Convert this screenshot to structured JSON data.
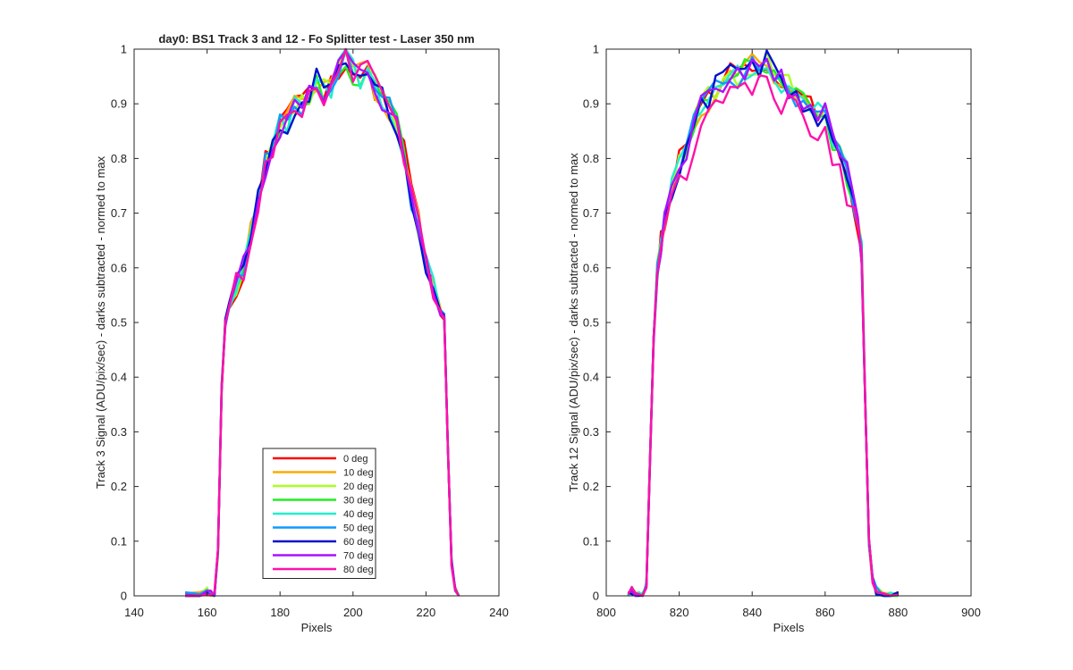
{
  "chart_data": [
    {
      "type": "line",
      "title": "day0: BS1  Track 3 and 12 - Fo Splitter test - Laser 350 nm",
      "xlabel": "Pixels",
      "ylabel": "Track 3 Signal (ADU/pix/sec) - darks subtracted - normed to max",
      "xlim": [
        140,
        240
      ],
      "ylim": [
        0,
        1
      ],
      "xticks": [
        "140",
        "160",
        "180",
        "200",
        "220",
        "240"
      ],
      "yticks": [
        "0",
        "0.1",
        "0.2",
        "0.3",
        "0.4",
        "0.5",
        "0.6",
        "0.7",
        "0.8",
        "0.9",
        "1"
      ],
      "grid": false,
      "legend_position": "bottom-center",
      "shape": {
        "x": [
          154,
          158,
          160,
          161,
          162,
          163,
          164,
          165,
          166,
          168,
          170,
          172,
          174,
          176,
          178,
          180,
          182,
          184,
          186,
          188,
          190,
          192,
          194,
          196,
          198,
          200,
          202,
          204,
          206,
          208,
          210,
          212,
          214,
          216,
          218,
          220,
          222,
          224,
          225,
          226,
          227,
          228,
          229
        ],
        "y": [
          0.0,
          0.0,
          0.01,
          0.005,
          0.0,
          0.08,
          0.38,
          0.5,
          0.53,
          0.57,
          0.6,
          0.66,
          0.72,
          0.79,
          0.82,
          0.86,
          0.87,
          0.9,
          0.9,
          0.92,
          0.94,
          0.92,
          0.93,
          0.96,
          0.98,
          0.96,
          0.95,
          0.96,
          0.93,
          0.91,
          0.89,
          0.86,
          0.81,
          0.73,
          0.68,
          0.61,
          0.56,
          0.52,
          0.51,
          0.27,
          0.06,
          0.01,
          0.0
        ]
      },
      "series": [
        {
          "name": "0 deg",
          "color": "#ff0000"
        },
        {
          "name": "10 deg",
          "color": "#ffaa00"
        },
        {
          "name": "20 deg",
          "color": "#aaff22"
        },
        {
          "name": "30 deg",
          "color": "#22ee22"
        },
        {
          "name": "40 deg",
          "color": "#22eecc"
        },
        {
          "name": "50 deg",
          "color": "#1199ff"
        },
        {
          "name": "60 deg",
          "color": "#0011cc"
        },
        {
          "name": "70 deg",
          "color": "#aa11ff"
        },
        {
          "name": "80 deg",
          "color": "#ff11aa"
        }
      ]
    },
    {
      "type": "line",
      "title": "",
      "xlabel": "Pixels",
      "ylabel": "Track 12 Signal (ADU/pix/sec) - darks subtracted - normed to max",
      "xlim": [
        800,
        900
      ],
      "ylim": [
        0,
        1
      ],
      "xticks": [
        "800",
        "820",
        "840",
        "860",
        "880",
        "900"
      ],
      "yticks": [
        "0",
        "0.1",
        "0.2",
        "0.3",
        "0.4",
        "0.5",
        "0.6",
        "0.7",
        "0.8",
        "0.9",
        "1"
      ],
      "grid": false,
      "shape": {
        "x": [
          806,
          807,
          808,
          809,
          810,
          811,
          812,
          813,
          814,
          815,
          816,
          818,
          820,
          822,
          824,
          826,
          828,
          830,
          832,
          834,
          836,
          838,
          840,
          842,
          844,
          846,
          848,
          850,
          852,
          854,
          856,
          858,
          860,
          862,
          864,
          866,
          868,
          869,
          870,
          871,
          872,
          873,
          874,
          876,
          878,
          880
        ],
        "y": [
          0.0,
          0.01,
          0.005,
          0.0,
          0.0,
          0.02,
          0.25,
          0.47,
          0.6,
          0.65,
          0.69,
          0.74,
          0.79,
          0.82,
          0.86,
          0.89,
          0.91,
          0.93,
          0.94,
          0.95,
          0.95,
          0.96,
          0.97,
          0.97,
          0.98,
          0.96,
          0.94,
          0.93,
          0.92,
          0.9,
          0.89,
          0.88,
          0.88,
          0.84,
          0.8,
          0.77,
          0.72,
          0.68,
          0.63,
          0.35,
          0.1,
          0.03,
          0.01,
          0.0,
          0.0,
          0.0
        ]
      },
      "series": [
        {
          "name": "0 deg",
          "color": "#ff0000"
        },
        {
          "name": "10 deg",
          "color": "#ffaa00"
        },
        {
          "name": "20 deg",
          "color": "#aaff22"
        },
        {
          "name": "30 deg",
          "color": "#22ee22"
        },
        {
          "name": "40 deg",
          "color": "#22eecc"
        },
        {
          "name": "50 deg",
          "color": "#1199ff"
        },
        {
          "name": "60 deg",
          "color": "#0011cc"
        },
        {
          "name": "70 deg",
          "color": "#aa11ff"
        },
        {
          "name": "80 deg",
          "color": "#ff11aa"
        }
      ]
    }
  ]
}
